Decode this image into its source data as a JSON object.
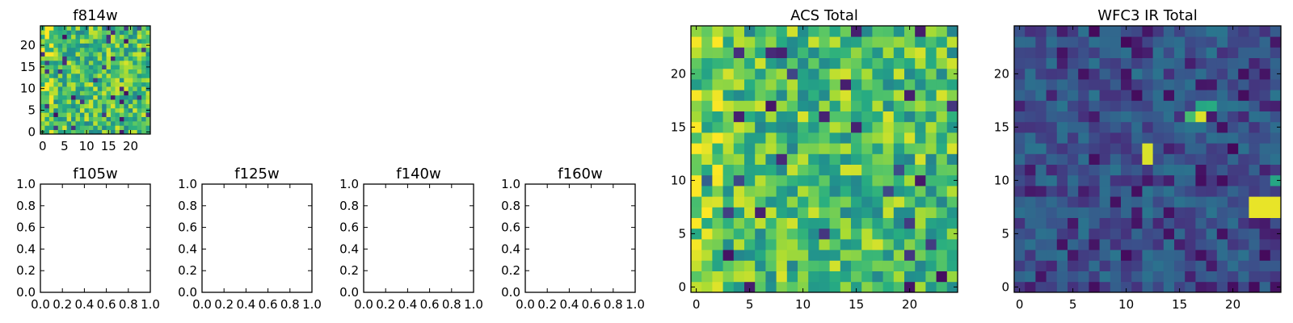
{
  "chart_data": [
    {
      "type": "heatmap",
      "title": "f814w",
      "xticks": [
        "0",
        "5",
        "10",
        "15",
        "20"
      ],
      "yticks": [
        "0",
        "5",
        "10",
        "15",
        "20"
      ],
      "xlim": [
        -0.5,
        24.5
      ],
      "ylim": [
        -0.5,
        24.5
      ],
      "grid": "25x25 pixel image",
      "colormap": "viridis",
      "seed": 11,
      "mode": "acs"
    },
    {
      "type": "line",
      "title": "f105w",
      "xticks": [
        "0.0",
        "0.2",
        "0.4",
        "0.6",
        "0.8",
        "1.0"
      ],
      "yticks": [
        "0.0",
        "0.2",
        "0.4",
        "0.6",
        "0.8",
        "1.0"
      ],
      "xlim": [
        0,
        1
      ],
      "ylim": [
        0,
        1
      ],
      "series": []
    },
    {
      "type": "line",
      "title": "f125w",
      "xticks": [
        "0.0",
        "0.2",
        "0.4",
        "0.6",
        "0.8",
        "1.0"
      ],
      "yticks": [
        "0.0",
        "0.2",
        "0.4",
        "0.6",
        "0.8",
        "1.0"
      ],
      "xlim": [
        0,
        1
      ],
      "ylim": [
        0,
        1
      ],
      "series": []
    },
    {
      "type": "line",
      "title": "f140w",
      "xticks": [
        "0.0",
        "0.2",
        "0.4",
        "0.6",
        "0.8",
        "1.0"
      ],
      "yticks": [
        "0.0",
        "0.2",
        "0.4",
        "0.6",
        "0.8",
        "1.0"
      ],
      "xlim": [
        0,
        1
      ],
      "ylim": [
        0,
        1
      ],
      "series": []
    },
    {
      "type": "line",
      "title": "f160w",
      "xticks": [
        "0.0",
        "0.2",
        "0.4",
        "0.6",
        "0.8",
        "1.0"
      ],
      "yticks": [
        "0.0",
        "0.2",
        "0.4",
        "0.6",
        "0.8",
        "1.0"
      ],
      "xlim": [
        0,
        1
      ],
      "ylim": [
        0,
        1
      ],
      "series": []
    },
    {
      "type": "heatmap",
      "title": "ACS Total",
      "xticks": [
        "0",
        "5",
        "10",
        "15",
        "20"
      ],
      "yticks": [
        "0",
        "5",
        "10",
        "15",
        "20"
      ],
      "xlim": [
        -0.5,
        24.5
      ],
      "ylim": [
        -0.5,
        24.5
      ],
      "grid": "25x25 pixel image",
      "colormap": "viridis",
      "seed": 27,
      "mode": "acs"
    },
    {
      "type": "heatmap",
      "title": "WFC3 IR Total",
      "xticks": [
        "0",
        "5",
        "10",
        "15",
        "20"
      ],
      "yticks": [
        "0",
        "5",
        "10",
        "15",
        "20"
      ],
      "xlim": [
        -0.5,
        24.5
      ],
      "ylim": [
        -0.5,
        24.5
      ],
      "grid": "25x25 pixel image",
      "colormap": "viridis",
      "seed": 53,
      "mode": "ir",
      "bright_pixels": [
        {
          "x": 12,
          "y": 12,
          "v": 0.95
        },
        {
          "x": 12,
          "y": 13,
          "v": 0.95
        },
        {
          "x": 17,
          "y": 16,
          "v": 0.95
        },
        {
          "x": 16,
          "y": 16,
          "v": 0.7
        },
        {
          "x": 17,
          "y": 17,
          "v": 0.6
        },
        {
          "x": 18,
          "y": 17,
          "v": 0.62
        },
        {
          "x": 22,
          "y": 8,
          "v": 0.97
        },
        {
          "x": 23,
          "y": 8,
          "v": 0.97
        },
        {
          "x": 24,
          "y": 8,
          "v": 0.97
        },
        {
          "x": 22,
          "y": 7,
          "v": 0.97
        },
        {
          "x": 23,
          "y": 7,
          "v": 0.97
        },
        {
          "x": 24,
          "y": 7,
          "v": 0.97
        },
        {
          "x": 24,
          "y": 10,
          "v": 0.6
        }
      ]
    }
  ]
}
